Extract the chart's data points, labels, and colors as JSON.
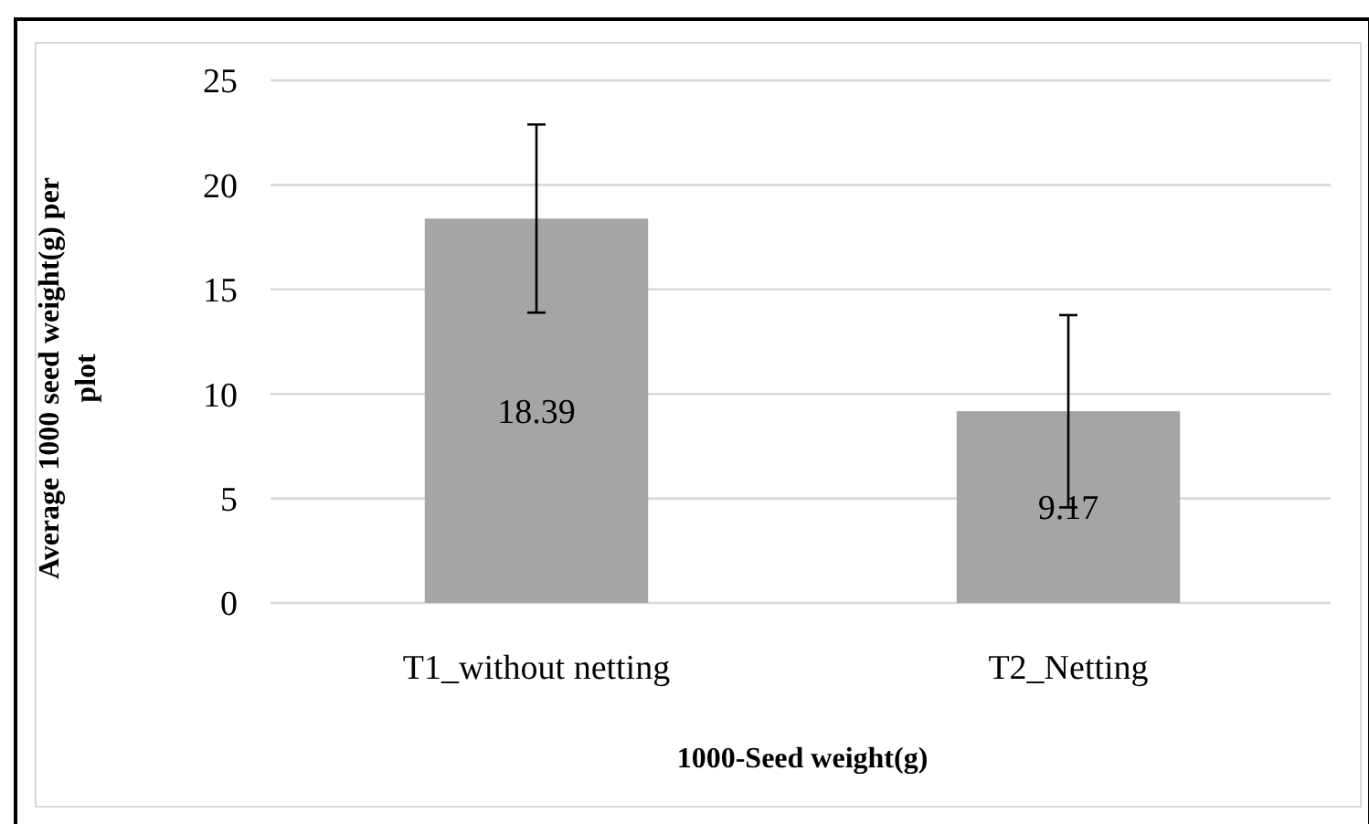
{
  "chart_data": {
    "type": "bar",
    "xlabel": "1000-Seed weight(g)",
    "ylabel": "Average  1000 seed weight(g) per plot",
    "categories": [
      "T1_without netting",
      "T2_Netting"
    ],
    "values": [
      18.39,
      9.17
    ],
    "errors": [
      4.5,
      4.6
    ],
    "color": "#a5a5a5",
    "ylim": [
      0,
      25
    ],
    "yticks": [
      0,
      5,
      10,
      15,
      20,
      25
    ],
    "grid": "y",
    "data_labels": true
  }
}
